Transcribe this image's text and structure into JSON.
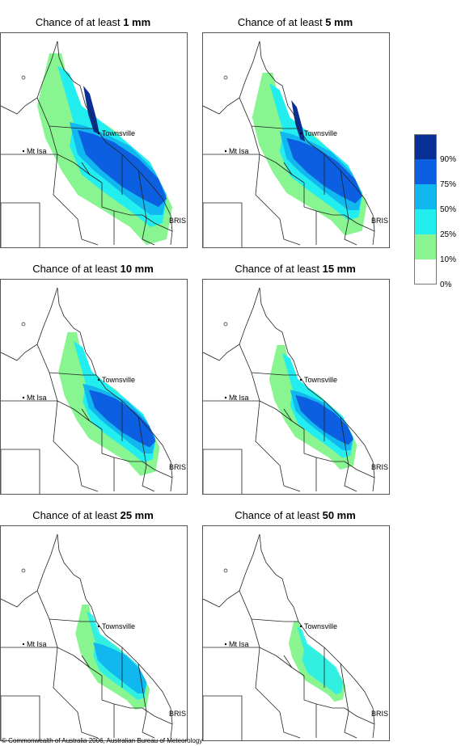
{
  "panels": [
    {
      "prefix": "Chance of at least ",
      "amount": "1 mm"
    },
    {
      "prefix": "Chance of at least ",
      "amount": "5 mm"
    },
    {
      "prefix": "Chance of at least ",
      "amount": "10 mm"
    },
    {
      "prefix": "Chance of at least ",
      "amount": "15 mm"
    },
    {
      "prefix": "Chance of at least ",
      "amount": "25 mm"
    },
    {
      "prefix": "Chance of at least ",
      "amount": "50 mm"
    }
  ],
  "places": {
    "townsville": "Townsville",
    "mt_isa": "Mt Isa",
    "bris": "BRIS"
  },
  "legend": {
    "ticks": [
      "90%",
      "75%",
      "50%",
      "25%",
      "10%",
      "0%"
    ],
    "colors": [
      "#0a2f94",
      "#0b5fe0",
      "#11b7ef",
      "#22eef0",
      "#88f590",
      "#ffffff"
    ]
  },
  "copyright": "© Commonwealth of Australia 2006, Australian Bureau of Meteorology"
}
